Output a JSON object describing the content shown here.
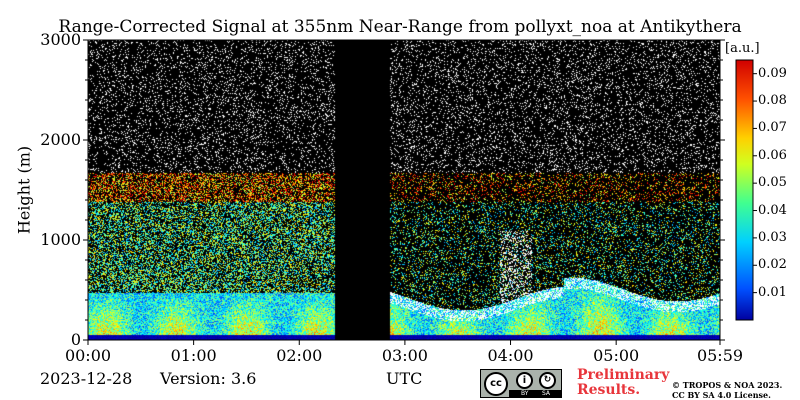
{
  "chart_data": {
    "type": "heatmap",
    "title": "Range-Corrected Signal at 355nm Near-Range from pollyxt_noa at Antikythera",
    "ylabel": "Height (m)",
    "xlabel": "UTC",
    "x_ticks": [
      "00:00",
      "01:00",
      "02:00",
      "03:00",
      "04:00",
      "05:00",
      "05:59"
    ],
    "x_tick_hours": [
      0,
      1,
      2,
      3,
      4,
      5,
      5.983
    ],
    "xlim_hours": [
      0,
      5.983
    ],
    "y_ticks": [
      0,
      1000,
      2000,
      3000
    ],
    "ylim": [
      0,
      3000
    ],
    "colorbar": {
      "unit": "[a.u.]",
      "ticks": [
        "0.01",
        "0.02",
        "0.03",
        "0.04",
        "0.05",
        "0.06",
        "0.07",
        "0.08",
        "0.09"
      ],
      "range": [
        0,
        0.095
      ],
      "colormap": "jet"
    },
    "no_data_gap_hours": [
      2.33,
      2.85
    ],
    "background_color": "#000000"
  },
  "footer": {
    "date": "2023-12-28",
    "version": "Version: 3.6",
    "preliminary": [
      "Preliminary",
      "Results."
    ],
    "copyright": [
      "© TROPOS & NOA 2023.",
      "CC BY SA 4.0 License."
    ]
  },
  "license_badge": {
    "cc": "cc",
    "by": "BY",
    "sa": "SA"
  }
}
